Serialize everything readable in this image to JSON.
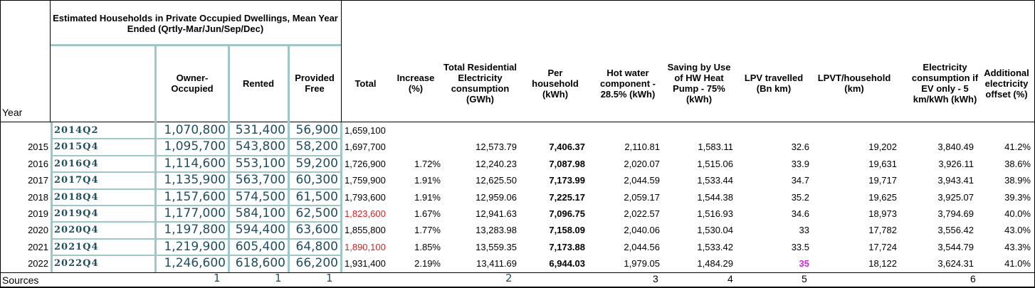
{
  "headers": {
    "year": "Year",
    "group_title": "Estimated Households in Private Occupied Dwellings, Mean Year Ended (Qrtly-Mar/Jun/Sep/Dec)",
    "owner": "Owner-Occupied",
    "rented": "Rented",
    "provided": "Provided Free",
    "total": "Total",
    "increase": "Increase (%)",
    "total_res": "Total Residential Electricity consumption (GWh)",
    "per_hh": "Per household (kWh)",
    "hot_water": "Hot water component - 28.5% (kWh)",
    "saving": "Saving by Use of HW Heat Pump - 75% (kWh)",
    "lpv": "LPV travelled (Bn km)",
    "lpvt": "LPVT/household (km)",
    "elec_ev": "Electricity consumption if EV only - 5 km/kWh (kWh)",
    "additional": "Additional electricity offset (%)"
  },
  "rows": [
    {
      "year": "",
      "quarter": "2014Q2",
      "owner": "1,070,800",
      "rented": "531,400",
      "provided": "56,900",
      "total": "1,659,100",
      "increase": "",
      "total_res": "",
      "per_hh": "",
      "hot_water": "",
      "saving": "",
      "lpv": "",
      "lpvt": "",
      "elec_ev": "",
      "additional": ""
    },
    {
      "year": "2015",
      "quarter": "2015Q4",
      "owner": "1,095,700",
      "rented": "543,800",
      "provided": "58,200",
      "total": "1,697,700",
      "increase": "",
      "total_res": "12,573.79",
      "per_hh": "7,406.37",
      "hot_water": "2,110.81",
      "saving": "1,583.11",
      "lpv": "32.6",
      "lpvt": "19,202",
      "elec_ev": "3,840.49",
      "additional": "41.2%"
    },
    {
      "year": "2016",
      "quarter": "2016Q4",
      "owner": "1,114,600",
      "rented": "553,100",
      "provided": "59,200",
      "total": "1,726,900",
      "increase": "1.72%",
      "total_res": "12,240.23",
      "per_hh": "7,087.98",
      "hot_water": "2,020.07",
      "saving": "1,515.06",
      "lpv": "33.9",
      "lpvt": "19,631",
      "elec_ev": "3,926.11",
      "additional": "38.6%"
    },
    {
      "year": "2017",
      "quarter": "2017Q4",
      "owner": "1,135,900",
      "rented": "563,700",
      "provided": "60,300",
      "total": "1,759,900",
      "increase": "1.91%",
      "total_res": "12,625.50",
      "per_hh": "7,173.99",
      "hot_water": "2,044.59",
      "saving": "1,533.44",
      "lpv": "34.7",
      "lpvt": "19,717",
      "elec_ev": "3,943.41",
      "additional": "38.9%"
    },
    {
      "year": "2018",
      "quarter": "2018Q4",
      "owner": "1,157,600",
      "rented": "574,500",
      "provided": "61,500",
      "total": "1,793,600",
      "increase": "1.91%",
      "total_res": "12,959.06",
      "per_hh": "7,225.17",
      "hot_water": "2,059.17",
      "saving": "1,544.38",
      "lpv": "35.2",
      "lpvt": "19,625",
      "elec_ev": "3,925.07",
      "additional": "39.3%"
    },
    {
      "year": "2019",
      "quarter": "2019Q4",
      "owner": "1,177,000",
      "rented": "584,100",
      "provided": "62,500",
      "total": "1,823,600",
      "total_red": true,
      "increase": "1.67%",
      "total_res": "12,941.63",
      "per_hh": "7,096.75",
      "hot_water": "2,022.57",
      "saving": "1,516.93",
      "lpv": "34.6",
      "lpvt": "18,973",
      "elec_ev": "3,794.69",
      "additional": "40.0%"
    },
    {
      "year": "2020",
      "quarter": "2020Q4",
      "owner": "1,197,800",
      "rented": "594,400",
      "provided": "63,600",
      "total": "1,855,800",
      "increase": "1.77%",
      "total_res": "13,283.98",
      "per_hh": "7,158.09",
      "hot_water": "2,040.06",
      "saving": "1,530.04",
      "lpv": "33",
      "lpvt": "17,782",
      "elec_ev": "3,556.42",
      "additional": "43.0%"
    },
    {
      "year": "2021",
      "quarter": "2021Q4",
      "owner": "1,219,900",
      "rented": "605,400",
      "provided": "64,800",
      "total": "1,890,100",
      "total_red": true,
      "increase": "1.85%",
      "total_res": "13,559.35",
      "per_hh": "7,173.88",
      "hot_water": "2,044.56",
      "saving": "1,533.42",
      "lpv": "33.5",
      "lpvt": "17,724",
      "elec_ev": "3,544.79",
      "additional": "43.3%"
    },
    {
      "year": "2022",
      "quarter": "2022Q4",
      "owner": "1,246,600",
      "rented": "618,600",
      "provided": "66,200",
      "total": "1,931,400",
      "increase": "2.19%",
      "total_res": "13,411.69",
      "per_hh": "6,944.03",
      "hot_water": "1,979.05",
      "saving": "1,484.29",
      "lpv": "35",
      "lpv_pink": true,
      "lpvt": "18,122",
      "elec_ev": "3,624.31",
      "additional": "41.0%"
    }
  ],
  "sources": {
    "label": "Sources",
    "owner": "1",
    "rented": "1",
    "provided": "1",
    "total_res": "2",
    "hot_water": "3",
    "saving": "4",
    "lpv": "5",
    "elec_ev": "6"
  }
}
